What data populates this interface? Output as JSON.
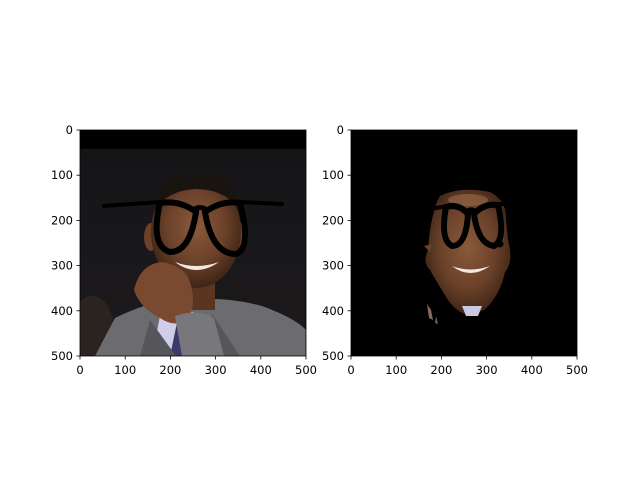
{
  "figure": {
    "panels": [
      {
        "name": "original-with-glasses",
        "x_ticks": [
          "0",
          "100",
          "200",
          "300",
          "400",
          "500"
        ],
        "y_ticks": [
          "0",
          "100",
          "200",
          "300",
          "400",
          "500"
        ],
        "x_range": [
          0,
          500
        ],
        "y_range": [
          0,
          500
        ]
      },
      {
        "name": "masked-face-with-glasses",
        "x_ticks": [
          "0",
          "100",
          "200",
          "300",
          "400",
          "500"
        ],
        "y_ticks": [
          "0",
          "100",
          "200",
          "300",
          "400",
          "500"
        ],
        "x_range": [
          0,
          500
        ],
        "y_range": [
          0,
          500
        ]
      }
    ]
  }
}
